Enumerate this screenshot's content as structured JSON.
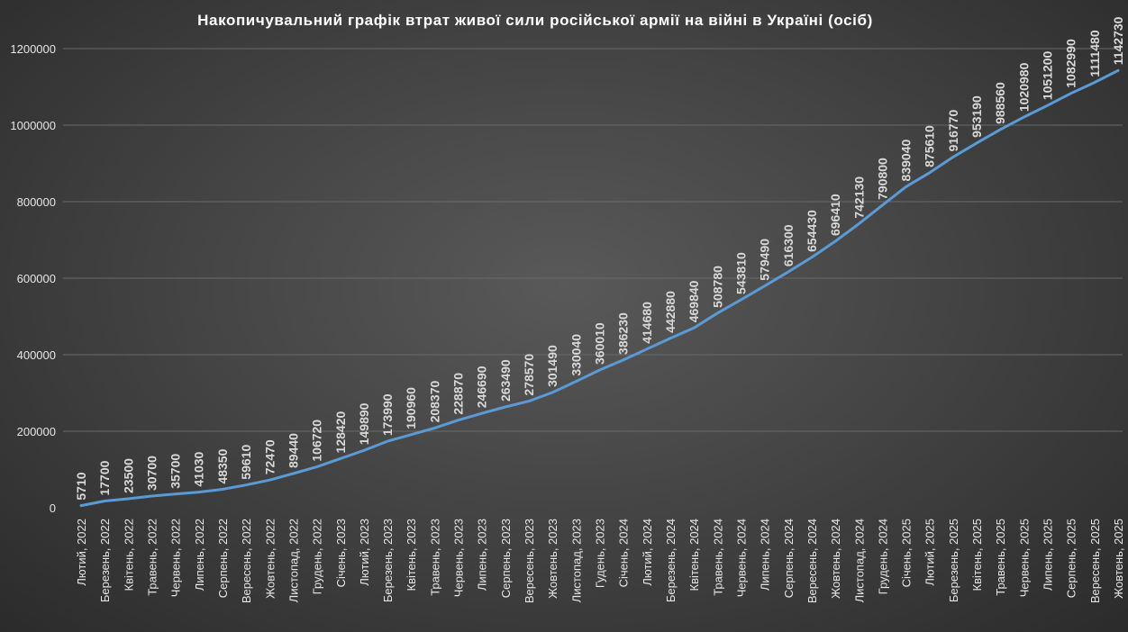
{
  "chart_data": {
    "type": "line",
    "title": "Накопичувальний  графік  втрат  живої  сили  російської  армії  на  війні  в  Україні  (осіб)",
    "xlabel": "",
    "ylabel": "",
    "ylim": [
      0,
      1200000
    ],
    "yticks": [
      0,
      200000,
      400000,
      600000,
      800000,
      1000000,
      1200000
    ],
    "ytick_labels": [
      "0",
      "200000",
      "400000",
      "600000",
      "800000",
      "1000000",
      "1200000"
    ],
    "grid": true,
    "legend": "none",
    "categories": [
      "Лютий, 2022",
      "Березень, 2022",
      "Квітень, 2022",
      "Травень, 2022",
      "Червень, 2022",
      "Липень, 2022",
      "Серпень, 2022",
      "Вересень, 2022",
      "Жовтень, 2022",
      "Листопад, 2022",
      "Грудень, 2022",
      "Січень, 2023",
      "Лютий, 2023",
      "Березень, 2023",
      "Квітень, 2023",
      "Травень, 2023",
      "Червень, 2023",
      "Липень, 2023",
      "Серпень, 2023",
      "Вересень, 2023",
      "Жовтень, 2023",
      "Листопад, 2023",
      "Гудень, 2023",
      "Січень, 2024",
      "Лютий, 2024",
      "Березень, 2024",
      "Квітень, 2024",
      "Травень, 2024",
      "Червень, 2024",
      "Липень, 2024",
      "Серпень, 2024",
      "Вересень, 2024",
      "Жовтень, 2024",
      "Листопад, 2024",
      "Грудень, 2024",
      "Січень, 2025",
      "Лютий, 2025",
      "Березень, 2025",
      "Квітень, 2025",
      "Травень, 2025",
      "Червень, 2025",
      "Липень, 2025",
      "Серпень, 2025",
      "Вересень, 2025",
      "Жовтень, 2025"
    ],
    "series": [
      {
        "values": [
          5710,
          17700,
          23500,
          30700,
          35700,
          41030,
          48350,
          59610,
          72470,
          89440,
          106720,
          128420,
          149890,
          173990,
          190960,
          208370,
          228870,
          246690,
          263490,
          278570,
          301490,
          330040,
          360010,
          386230,
          414680,
          442880,
          469840,
          508780,
          543810,
          579490,
          616300,
          654430,
          696410,
          742130,
          790800,
          839040,
          875610,
          916770,
          953190,
          988560,
          1020980,
          1051200,
          1082990,
          1111480,
          1142730
        ],
        "color": "#5b9bd5"
      }
    ]
  }
}
